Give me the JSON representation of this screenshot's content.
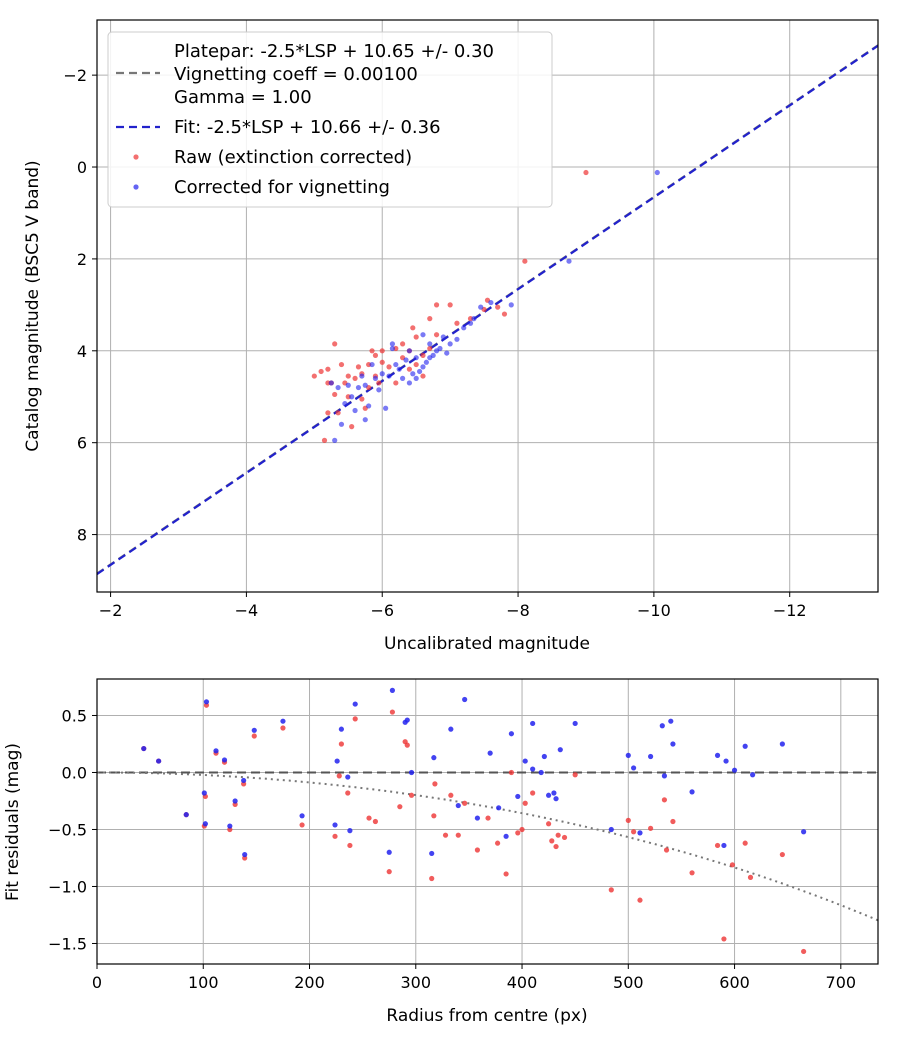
{
  "colors": {
    "raw": "#ee3333",
    "corrected": "#2222ee",
    "fit_line": "#2222cc",
    "platepar_line": "#777777",
    "grid": "#b0b0b0"
  },
  "chart_data": [
    {
      "type": "scatter",
      "title": "",
      "xlabel": "Uncalibrated magnitude",
      "ylabel": "Catalog magnitude (BSC5 V band)",
      "xlim": [
        -1.8,
        -13.3
      ],
      "ylim": [
        9.25,
        -3.2
      ],
      "xticks": [
        -2,
        -4,
        -6,
        -8,
        -10,
        -12
      ],
      "xtick_labels": [
        "−2",
        "−4",
        "−6",
        "−8",
        "−10",
        "−12"
      ],
      "yticks": [
        -2,
        0,
        2,
        4,
        6,
        8
      ],
      "ytick_labels": [
        "−2",
        "0",
        "2",
        "4",
        "6",
        "8"
      ],
      "grid": true,
      "legend_position": "top-left",
      "legend": [
        {
          "label": "Platepar: -2.5*LSP + 10.65 +/- 0.30"
        },
        {
          "label": "Vignetting coeff = 0.00100"
        },
        {
          "label": "Gamma = 1.00"
        },
        {
          "label": "Fit: -2.5*LSP + 10.66 +/- 0.36"
        },
        {
          "label": "Raw (extinction corrected)"
        },
        {
          "label": "Corrected for vignetting"
        }
      ],
      "lines": [
        {
          "name": "Platepar",
          "slope": -2.5,
          "intercept": 10.65
        },
        {
          "name": "Fit",
          "slope": -2.5,
          "intercept": 10.66
        }
      ],
      "series": [
        {
          "name": "Raw (extinction corrected)",
          "points": [
            [
              -9.0,
              0.12
            ],
            [
              -8.1,
              2.05
            ],
            [
              -7.8,
              3.2
            ],
            [
              -7.7,
              3.05
            ],
            [
              -7.55,
              2.9
            ],
            [
              -7.5,
              3.1
            ],
            [
              -7.3,
              3.3
            ],
            [
              -7.1,
              3.4
            ],
            [
              -7.0,
              3.0
            ],
            [
              -6.8,
              3.65
            ],
            [
              -6.7,
              3.3
            ],
            [
              -6.8,
              3.0
            ],
            [
              -6.7,
              3.95
            ],
            [
              -6.6,
              4.1
            ],
            [
              -6.6,
              4.55
            ],
            [
              -6.5,
              3.7
            ],
            [
              -6.5,
              4.3
            ],
            [
              -6.4,
              4.0
            ],
            [
              -6.4,
              4.4
            ],
            [
              -6.3,
              3.85
            ],
            [
              -6.3,
              4.15
            ],
            [
              -6.2,
              4.7
            ],
            [
              -6.2,
              3.95
            ],
            [
              -6.1,
              4.35
            ],
            [
              -6.0,
              4.0
            ],
            [
              -6.0,
              4.25
            ],
            [
              -5.95,
              4.7
            ],
            [
              -5.9,
              4.1
            ],
            [
              -5.9,
              4.55
            ],
            [
              -5.85,
              4.0
            ],
            [
              -5.8,
              4.3
            ],
            [
              -5.8,
              4.8
            ],
            [
              -5.75,
              5.25
            ],
            [
              -5.7,
              4.5
            ],
            [
              -5.7,
              5.05
            ],
            [
              -5.65,
              4.35
            ],
            [
              -5.6,
              4.6
            ],
            [
              -5.55,
              5.65
            ],
            [
              -5.5,
              4.55
            ],
            [
              -5.5,
              5.0
            ],
            [
              -5.45,
              4.7
            ],
            [
              -5.4,
              4.3
            ],
            [
              -5.35,
              5.35
            ],
            [
              -5.3,
              4.95
            ],
            [
              -5.3,
              3.85
            ],
            [
              -5.25,
              4.7
            ],
            [
              -5.2,
              4.4
            ],
            [
              -5.2,
              5.35
            ],
            [
              -5.15,
              5.95
            ],
            [
              -5.1,
              4.45
            ],
            [
              -5.0,
              4.55
            ],
            [
              -5.2,
              4.7
            ],
            [
              -6.45,
              3.5
            ]
          ]
        },
        {
          "name": "Corrected for vignetting",
          "points": [
            [
              -10.05,
              0.12
            ],
            [
              -8.75,
              2.05
            ],
            [
              -7.9,
              3.0
            ],
            [
              -7.6,
              2.95
            ],
            [
              -7.45,
              3.05
            ],
            [
              -7.35,
              3.3
            ],
            [
              -7.3,
              3.4
            ],
            [
              -7.2,
              3.5
            ],
            [
              -7.1,
              3.75
            ],
            [
              -7.0,
              3.85
            ],
            [
              -6.95,
              4.05
            ],
            [
              -6.9,
              3.7
            ],
            [
              -6.85,
              3.95
            ],
            [
              -6.8,
              4.0
            ],
            [
              -6.75,
              4.1
            ],
            [
              -6.7,
              4.15
            ],
            [
              -6.7,
              3.85
            ],
            [
              -6.65,
              4.25
            ],
            [
              -6.6,
              4.35
            ],
            [
              -6.6,
              3.65
            ],
            [
              -6.55,
              4.45
            ],
            [
              -6.5,
              4.6
            ],
            [
              -6.5,
              4.15
            ],
            [
              -6.45,
              4.5
            ],
            [
              -6.4,
              4.7
            ],
            [
              -6.35,
              4.2
            ],
            [
              -6.3,
              4.6
            ],
            [
              -6.25,
              4.4
            ],
            [
              -6.2,
              4.3
            ],
            [
              -6.15,
              3.95
            ],
            [
              -6.1,
              4.55
            ],
            [
              -6.05,
              5.25
            ],
            [
              -6.0,
              4.5
            ],
            [
              -5.95,
              4.85
            ],
            [
              -5.9,
              4.6
            ],
            [
              -5.85,
              4.3
            ],
            [
              -5.8,
              5.2
            ],
            [
              -5.75,
              4.75
            ],
            [
              -5.7,
              4.55
            ],
            [
              -5.65,
              4.8
            ],
            [
              -5.6,
              5.3
            ],
            [
              -5.55,
              5.0
            ],
            [
              -5.5,
              4.75
            ],
            [
              -5.45,
              5.15
            ],
            [
              -5.4,
              5.6
            ],
            [
              -5.35,
              4.8
            ],
            [
              -5.3,
              5.95
            ],
            [
              -5.25,
              4.7
            ],
            [
              -6.15,
              3.85
            ],
            [
              -6.4,
              4.0
            ],
            [
              -5.75,
              5.5
            ]
          ]
        }
      ]
    },
    {
      "type": "scatter",
      "title": "",
      "xlabel": "Radius from centre (px)",
      "ylabel": "Fit residuals (mag)",
      "xlim": [
        0,
        735
      ],
      "ylim": [
        -1.68,
        0.82
      ],
      "xticks": [
        0,
        100,
        200,
        300,
        400,
        500,
        600,
        700
      ],
      "xtick_labels": [
        "0",
        "100",
        "200",
        "300",
        "400",
        "500",
        "600",
        "700"
      ],
      "yticks": [
        0.5,
        0.0,
        -0.5,
        -1.0,
        -1.5
      ],
      "ytick_labels": [
        "0.5",
        "0.0",
        "−0.5",
        "−1.0",
        "−1.5"
      ],
      "grid": true,
      "zero_line": 0.0,
      "vignetting_curve": {
        "coeff": 0.001,
        "gamma": 1.0,
        "note": "predicted -2.5*log10(cos^4(coeff*r))"
      },
      "series": [
        {
          "name": "Raw (extinction corrected)",
          "points": [
            [
              44,
              0.21
            ],
            [
              58,
              0.1
            ],
            [
              84,
              -0.37
            ],
            [
              101,
              -0.47
            ],
            [
              102,
              -0.21
            ],
            [
              103,
              0.59
            ],
            [
              112,
              0.17
            ],
            [
              120,
              0.09
            ],
            [
              125,
              -0.5
            ],
            [
              130,
              -0.28
            ],
            [
              138,
              -0.1
            ],
            [
              139,
              -0.75
            ],
            [
              148,
              0.32
            ],
            [
              175,
              0.39
            ],
            [
              193,
              -0.46
            ],
            [
              224,
              -0.56
            ],
            [
              228,
              -0.03
            ],
            [
              230,
              0.25
            ],
            [
              236,
              -0.18
            ],
            [
              238,
              -0.64
            ],
            [
              243,
              0.47
            ],
            [
              256,
              -0.4
            ],
            [
              262,
              -0.43
            ],
            [
              275,
              -0.87
            ],
            [
              278,
              0.53
            ],
            [
              285,
              -0.3
            ],
            [
              290,
              0.27
            ],
            [
              292,
              0.24
            ],
            [
              296,
              -0.2
            ],
            [
              315,
              -0.93
            ],
            [
              317,
              -0.38
            ],
            [
              318,
              -0.1
            ],
            [
              328,
              -0.55
            ],
            [
              333,
              -0.2
            ],
            [
              340,
              -0.55
            ],
            [
              346,
              -0.27
            ],
            [
              358,
              -0.68
            ],
            [
              368,
              -0.4
            ],
            [
              377,
              -0.62
            ],
            [
              385,
              -0.89
            ],
            [
              390,
              0.0
            ],
            [
              396,
              -0.53
            ],
            [
              400,
              -0.5
            ],
            [
              403,
              -0.27
            ],
            [
              410,
              -0.18
            ],
            [
              425,
              -0.45
            ],
            [
              428,
              -0.6
            ],
            [
              432,
              -0.65
            ],
            [
              434,
              -0.55
            ],
            [
              440,
              -0.57
            ],
            [
              450,
              -0.02
            ],
            [
              484,
              -1.03
            ],
            [
              500,
              -0.42
            ],
            [
              505,
              -0.52
            ],
            [
              511,
              -1.12
            ],
            [
              521,
              -0.49
            ],
            [
              534,
              -0.24
            ],
            [
              536,
              -0.68
            ],
            [
              542,
              -0.43
            ],
            [
              560,
              -0.88
            ],
            [
              584,
              -0.64
            ],
            [
              590,
              -1.46
            ],
            [
              598,
              -0.81
            ],
            [
              610,
              -0.62
            ],
            [
              615,
              -0.92
            ],
            [
              645,
              -0.72
            ],
            [
              665,
              -1.57
            ]
          ]
        },
        {
          "name": "Corrected for vignetting",
          "points": [
            [
              44,
              0.21
            ],
            [
              58,
              0.1
            ],
            [
              84,
              -0.37
            ],
            [
              101,
              -0.18
            ],
            [
              102,
              -0.45
            ],
            [
              103,
              0.62
            ],
            [
              112,
              0.19
            ],
            [
              120,
              0.11
            ],
            [
              125,
              -0.47
            ],
            [
              130,
              -0.25
            ],
            [
              138,
              -0.07
            ],
            [
              139,
              -0.72
            ],
            [
              148,
              0.37
            ],
            [
              175,
              0.45
            ],
            [
              193,
              -0.38
            ],
            [
              224,
              -0.46
            ],
            [
              226,
              0.1
            ],
            [
              230,
              0.38
            ],
            [
              236,
              -0.04
            ],
            [
              238,
              -0.51
            ],
            [
              243,
              0.6
            ],
            [
              275,
              -0.7
            ],
            [
              278,
              0.72
            ],
            [
              290,
              0.44
            ],
            [
              292,
              0.46
            ],
            [
              296,
              0.0
            ],
            [
              315,
              -0.71
            ],
            [
              317,
              0.13
            ],
            [
              333,
              0.38
            ],
            [
              340,
              -0.29
            ],
            [
              346,
              0.64
            ],
            [
              358,
              -0.4
            ],
            [
              370,
              0.17
            ],
            [
              378,
              -0.31
            ],
            [
              385,
              -0.56
            ],
            [
              390,
              0.34
            ],
            [
              396,
              -0.21
            ],
            [
              403,
              0.1
            ],
            [
              410,
              0.03
            ],
            [
              410,
              0.43
            ],
            [
              418,
              0.0
            ],
            [
              421,
              0.14
            ],
            [
              425,
              -0.2
            ],
            [
              430,
              -0.18
            ],
            [
              432,
              -0.23
            ],
            [
              436,
              0.2
            ],
            [
              450,
              0.43
            ],
            [
              484,
              -0.5
            ],
            [
              500,
              0.15
            ],
            [
              505,
              0.04
            ],
            [
              511,
              -0.53
            ],
            [
              521,
              0.14
            ],
            [
              532,
              0.41
            ],
            [
              534,
              -0.03
            ],
            [
              540,
              0.45
            ],
            [
              542,
              0.25
            ],
            [
              560,
              -0.17
            ],
            [
              584,
              0.15
            ],
            [
              590,
              -0.64
            ],
            [
              592,
              0.1
            ],
            [
              600,
              0.02
            ],
            [
              610,
              0.23
            ],
            [
              617,
              -0.02
            ],
            [
              645,
              0.25
            ],
            [
              665,
              -0.52
            ]
          ]
        }
      ]
    }
  ]
}
